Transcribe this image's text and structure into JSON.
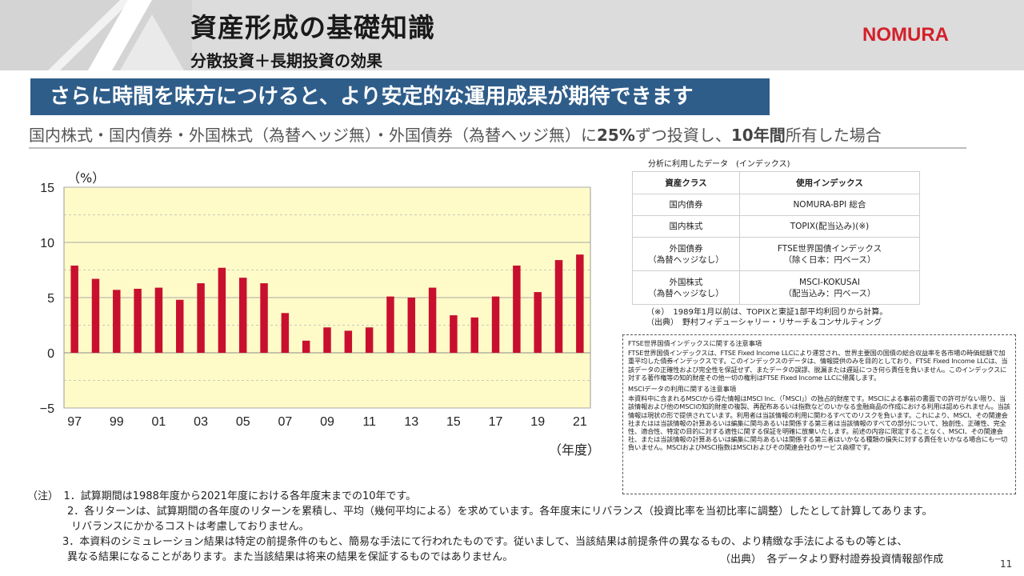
{
  "header": {
    "title": "資産形成の基礎知識",
    "subtitle": "分散投資＋長期投資の効果",
    "logo": "NOMURA",
    "logo_color": "#d4202a"
  },
  "banner": {
    "text": "さらに時間を味方につけると、より安定的な運用成果が期待できます",
    "color": "#2f5d8a"
  },
  "condition": {
    "part1": "国内株式・国内債券・外国株式（為替ヘッジ無）・外国債券（為替ヘッジ無）に",
    "emph1": "25%",
    "part2": "ずつ投資し、",
    "emph2": "10年間",
    "part3": "所有した場合"
  },
  "chart_data": {
    "type": "bar",
    "title": "",
    "xlabel": "（年度）",
    "ylabel": "（%）",
    "ylim": [
      -5,
      15
    ],
    "yticks": [
      15,
      10,
      5,
      0,
      -5
    ],
    "ytick_labels": [
      "15",
      "10",
      "5",
      "0",
      "−5"
    ],
    "grid": true,
    "categories": [
      "97",
      "98",
      "99",
      "00",
      "01",
      "02",
      "03",
      "04",
      "05",
      "06",
      "07",
      "08",
      "09",
      "10",
      "11",
      "12",
      "13",
      "14",
      "15",
      "16",
      "17",
      "18",
      "19",
      "20",
      "21"
    ],
    "xtick_labels": [
      "97",
      "99",
      "01",
      "03",
      "05",
      "07",
      "09",
      "11",
      "13",
      "15",
      "17",
      "19",
      "21"
    ],
    "values": [
      7.9,
      6.7,
      5.7,
      5.8,
      5.9,
      4.8,
      6.3,
      7.7,
      6.8,
      6.3,
      3.6,
      1.1,
      2.3,
      2.0,
      2.3,
      5.1,
      5.0,
      5.9,
      3.4,
      3.2,
      5.1,
      7.9,
      5.5,
      8.4,
      8.9
    ],
    "bar_color": "#c8102e",
    "plot_bg": "#fffbc8"
  },
  "index_table": {
    "caption": "分析に利用したデータ　(インデックス)",
    "headers": [
      "資産クラス",
      "使用インデックス"
    ],
    "rows": [
      {
        "cls1": "国内債券",
        "cls2": "",
        "idx1": "NOMURA-BPI 総合",
        "idx2": ""
      },
      {
        "cls1": "国内株式",
        "cls2": "",
        "idx1": "TOPIX(配当込み)(※)",
        "idx2": ""
      },
      {
        "cls1": "外国債券",
        "cls2": "（為替ヘッジなし）",
        "idx1": "FTSE世界国債インデックス",
        "idx2": "（除く日本：円ベース）"
      },
      {
        "cls1": "外国株式",
        "cls2": "（為替ヘッジなし）",
        "idx1": "MSCI-KOKUSAI",
        "idx2": "（配当込み：円ベース）"
      }
    ],
    "note1": "（※）　1989年1月以前は、TOPIXと東証1部平均利回りから計算。",
    "note2": "（出典）　野村フィデューシャリー・リサーチ＆コンサルティング"
  },
  "disclaimer": {
    "ftse_heading": "FTSE世界国債インデックスに関する注意事項",
    "ftse_body": "FTSE世界国債インデックスは、FTSE Fixed Income LLCにより運営され、世界主要国の国債の総合収益率を各市場の時価総額で加重平均した債券インデックスです。このインデックスのデータは、情報提供のみを目的としており、FTSE Fixed Income LLCは、当該データの正確性および完全性を保証せず、またデータの誤謬、脱漏または遅延につき何ら責任を負いません。このインデックスに対する著作権等の知的財産その他一切の権利はFTSE Fixed Income LLCに帰属します。",
    "msci_heading": "MSCIデータの利用に関する注意事項",
    "msci_body": "本資料中に含まれるMSCIから得た情報はMSCI Inc.（「MSCI」）の独占的財産です。MSCIによる事前の書面での許可がない限り、当該情報および他のMSCIの知的財産の複製、再配布あるいは指数などのいかなる金融商品の作成における利用は認められません。当該情報は現状の形で提供されています。利用者は当該情報の利用に関わるすべてのリスクを負います。これにより、MSCI、その関連会社またはは当該情報の計算あるいは編集に関与あるいは関係する第三者は当該情報のすべての部分について、独創性、正確性、完全性、適合性、特定の目的に対する適性に関する保証を明確に放棄いたします。前述の内容に限定することなく、MSCI、その関連会社、または当該情報の計算あるいは編集に関与あるいは関係する第三者はいかなる種類の損失に対する責任をいかなる場合にも一切負いません。MSCIおよびMSCI指数はMSCIおよびその関連会社のサービス商標です。"
  },
  "notes": {
    "line1": "（注）　1．試算期間は1988年度から2021年度における各年度末までの10年です。",
    "line2": "2．各リターンは、試算期間の各年度のリターンを累積し、平均（幾何平均による）を求めています。各年度末にリバランス（投資比率を当初比率に調整）したとして計算してあります。",
    "line3": "リバランスにかかるコストは考慮しておりません。",
    "line4": "3．本資料のシミュレーション結果は特定の前提条件のもと、簡易な手法にて行われたものです。従いまして、当該結果は前提条件の異なるもの、より精緻な手法によるもの等とは、",
    "line5": "異なる結果になることがあります。また当該結果は将来の結果を保証するものではありません。",
    "source": "（出典）　各データより野村證券投資情報部作成"
  },
  "page_number": "11"
}
